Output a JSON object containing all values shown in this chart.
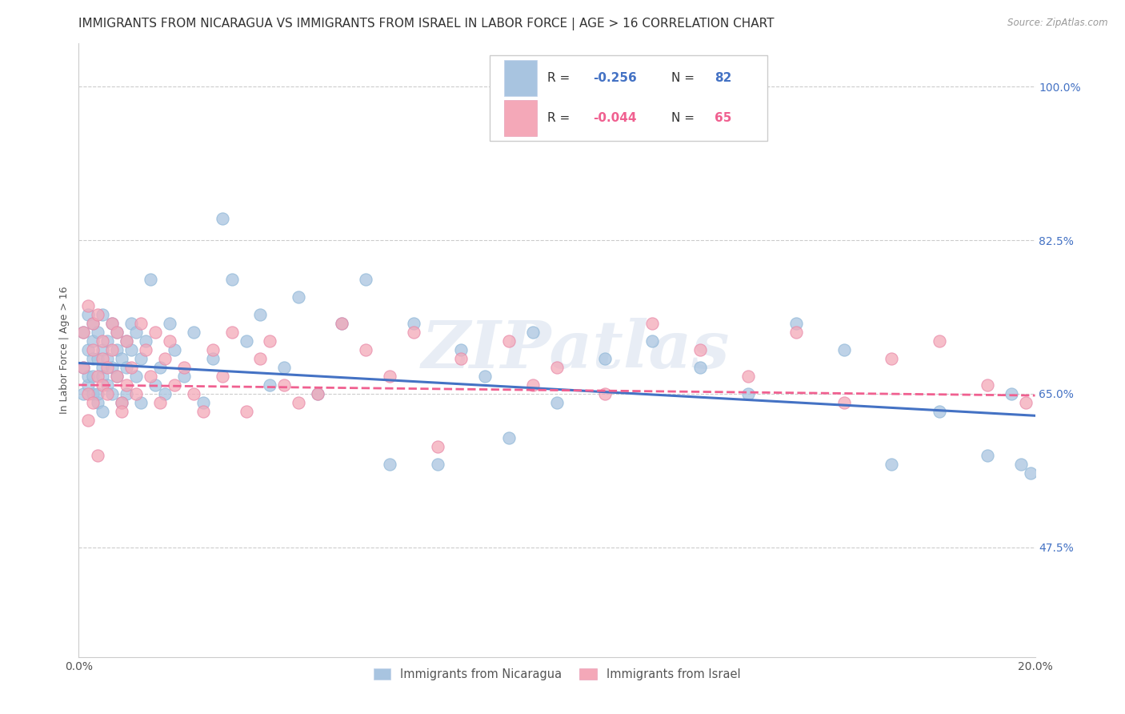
{
  "title": "IMMIGRANTS FROM NICARAGUA VS IMMIGRANTS FROM ISRAEL IN LABOR FORCE | AGE > 16 CORRELATION CHART",
  "source": "Source: ZipAtlas.com",
  "ylabel": "In Labor Force | Age > 16",
  "xlim": [
    0.0,
    0.2
  ],
  "ylim": [
    0.35,
    1.05
  ],
  "yticks": [
    0.475,
    0.65,
    0.825,
    1.0
  ],
  "ytick_labels": [
    "47.5%",
    "65.0%",
    "82.5%",
    "100.0%"
  ],
  "xticks": [
    0.0,
    0.05,
    0.1,
    0.15,
    0.2
  ],
  "xtick_labels": [
    "0.0%",
    "",
    "",
    "",
    "20.0%"
  ],
  "watermark": "ZIPatlas",
  "nicaragua_color": "#a8c4e0",
  "israel_color": "#f4a8b8",
  "nicaragua_line_color": "#4472c4",
  "israel_line_color": "#f06090",
  "legend_line_color": "#4472c4",
  "R_nicaragua": -0.256,
  "N_nicaragua": 82,
  "R_israel": -0.044,
  "N_israel": 65,
  "legend_label_nicaragua": "Immigrants from Nicaragua",
  "legend_label_israel": "Immigrants from Israel",
  "nicaragua_x": [
    0.001,
    0.001,
    0.001,
    0.002,
    0.002,
    0.002,
    0.002,
    0.003,
    0.003,
    0.003,
    0.003,
    0.003,
    0.004,
    0.004,
    0.004,
    0.004,
    0.005,
    0.005,
    0.005,
    0.005,
    0.005,
    0.006,
    0.006,
    0.006,
    0.007,
    0.007,
    0.007,
    0.008,
    0.008,
    0.008,
    0.009,
    0.009,
    0.01,
    0.01,
    0.01,
    0.011,
    0.011,
    0.012,
    0.012,
    0.013,
    0.013,
    0.014,
    0.015,
    0.016,
    0.017,
    0.018,
    0.019,
    0.02,
    0.022,
    0.024,
    0.026,
    0.028,
    0.03,
    0.032,
    0.035,
    0.038,
    0.04,
    0.043,
    0.046,
    0.05,
    0.055,
    0.06,
    0.065,
    0.07,
    0.075,
    0.08,
    0.085,
    0.09,
    0.095,
    0.1,
    0.11,
    0.12,
    0.13,
    0.14,
    0.15,
    0.16,
    0.17,
    0.18,
    0.19,
    0.195,
    0.197,
    0.199
  ],
  "nicaragua_y": [
    0.68,
    0.72,
    0.65,
    0.7,
    0.66,
    0.74,
    0.67,
    0.69,
    0.65,
    0.71,
    0.73,
    0.67,
    0.64,
    0.69,
    0.72,
    0.65,
    0.68,
    0.7,
    0.67,
    0.74,
    0.63,
    0.69,
    0.71,
    0.66,
    0.68,
    0.65,
    0.73,
    0.7,
    0.67,
    0.72,
    0.64,
    0.69,
    0.71,
    0.68,
    0.65,
    0.73,
    0.7,
    0.67,
    0.72,
    0.64,
    0.69,
    0.71,
    0.78,
    0.66,
    0.68,
    0.65,
    0.73,
    0.7,
    0.67,
    0.72,
    0.64,
    0.69,
    0.85,
    0.78,
    0.71,
    0.74,
    0.66,
    0.68,
    0.76,
    0.65,
    0.73,
    0.78,
    0.57,
    0.73,
    0.57,
    0.7,
    0.67,
    0.6,
    0.72,
    0.64,
    0.69,
    0.71,
    0.68,
    0.65,
    0.73,
    0.7,
    0.57,
    0.63,
    0.58,
    0.65,
    0.57,
    0.56
  ],
  "israel_x": [
    0.001,
    0.001,
    0.002,
    0.002,
    0.002,
    0.003,
    0.003,
    0.003,
    0.004,
    0.004,
    0.004,
    0.005,
    0.005,
    0.005,
    0.006,
    0.006,
    0.007,
    0.007,
    0.008,
    0.008,
    0.009,
    0.009,
    0.01,
    0.01,
    0.011,
    0.012,
    0.013,
    0.014,
    0.015,
    0.016,
    0.017,
    0.018,
    0.019,
    0.02,
    0.022,
    0.024,
    0.026,
    0.028,
    0.03,
    0.032,
    0.035,
    0.038,
    0.04,
    0.043,
    0.046,
    0.05,
    0.055,
    0.06,
    0.065,
    0.07,
    0.075,
    0.08,
    0.09,
    0.095,
    0.1,
    0.11,
    0.12,
    0.13,
    0.14,
    0.15,
    0.16,
    0.17,
    0.18,
    0.19,
    0.198
  ],
  "israel_y": [
    0.68,
    0.72,
    0.65,
    0.75,
    0.62,
    0.73,
    0.64,
    0.7,
    0.67,
    0.74,
    0.58,
    0.69,
    0.71,
    0.66,
    0.68,
    0.65,
    0.73,
    0.7,
    0.67,
    0.72,
    0.64,
    0.63,
    0.71,
    0.66,
    0.68,
    0.65,
    0.73,
    0.7,
    0.67,
    0.72,
    0.64,
    0.69,
    0.71,
    0.66,
    0.68,
    0.65,
    0.63,
    0.7,
    0.67,
    0.72,
    0.63,
    0.69,
    0.71,
    0.66,
    0.64,
    0.65,
    0.73,
    0.7,
    0.67,
    0.72,
    0.59,
    0.69,
    0.71,
    0.66,
    0.68,
    0.65,
    0.73,
    0.7,
    0.67,
    0.72,
    0.64,
    0.69,
    0.71,
    0.66,
    0.64
  ],
  "nic_trend_x": [
    0.0,
    0.2
  ],
  "nic_trend_y": [
    0.685,
    0.625
  ],
  "isr_trend_x": [
    0.0,
    0.2
  ],
  "isr_trend_y": [
    0.66,
    0.648
  ],
  "background_color": "#ffffff",
  "grid_color": "#cccccc",
  "title_fontsize": 11,
  "axis_label_fontsize": 9,
  "tick_fontsize": 10
}
